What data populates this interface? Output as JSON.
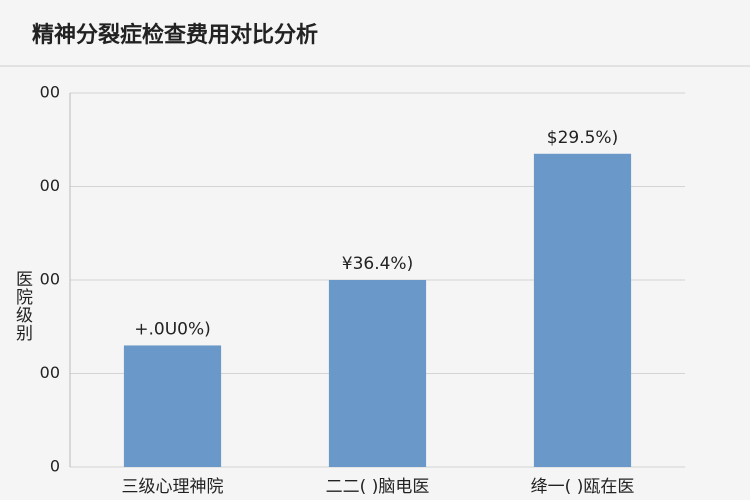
{
  "chart_data": {
    "type": "bar",
    "title": "精神分裂症检查费用对比分析",
    "y_label": "医院级别",
    "categories": [
      "三级心理神院",
      "二二( )脑电医",
      "绛一( )瓯在医"
    ],
    "values": [
      130,
      200,
      335
    ],
    "value_labels": [
      "+.0U0%)",
      "¥36.4%)",
      "$29.5%)"
    ],
    "color": "#6a98c8",
    "ylim": [
      0,
      400
    ],
    "yticks": [
      {
        "value": 0,
        "label": "0"
      },
      {
        "value": 100,
        "label": "00"
      },
      {
        "value": 200,
        "label": "00"
      },
      {
        "value": 300,
        "label": "00"
      },
      {
        "value": 400,
        "label": "00"
      }
    ],
    "grid": true
  }
}
